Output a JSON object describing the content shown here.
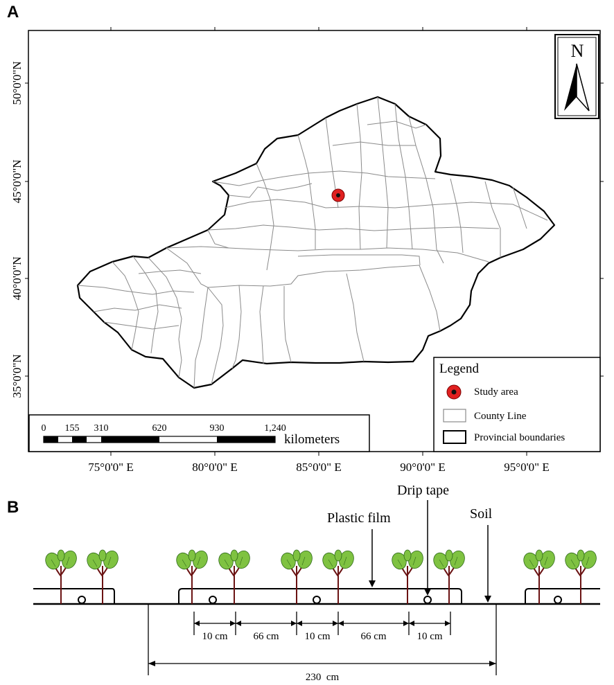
{
  "panel_a": {
    "letter": "A",
    "lat_labels": [
      "50°0'0\"N",
      "45°0'0\"N",
      "40°0'0\"N",
      "35°0'0\"N"
    ],
    "lon_labels": [
      "75°0'0\" E",
      "80°0'0\" E",
      "85°0'0\" E",
      "90°0'0\" E",
      "95°0'0\" E"
    ],
    "north_label": "N",
    "legend": {
      "title": "Legend",
      "items": [
        {
          "label": "Study area",
          "symbol": "red-dot-icon"
        },
        {
          "label": "County Line",
          "symbol": "gray-box-icon"
        },
        {
          "label": "Provincial boundaries",
          "symbol": "black-box-icon"
        }
      ]
    },
    "scale_bar": {
      "ticks": [
        "0",
        "155",
        "310",
        "620",
        "930",
        "1,240"
      ],
      "unit": "kilometers"
    },
    "colors": {
      "study_area": "#e02020",
      "county_line": "#8a8a8a",
      "province": "#000000"
    }
  },
  "panel_b": {
    "letter": "B",
    "labels": {
      "drip_tape": "Drip tape",
      "plastic_film": "Plastic film",
      "soil": "Soil"
    },
    "spacings": [
      "10 cm",
      "66 cm",
      "10 cm",
      "66 cm",
      "10 cm"
    ],
    "total": "230  cm",
    "colors": {
      "leaf": "#7fc241",
      "stem": "#6b1313"
    }
  }
}
